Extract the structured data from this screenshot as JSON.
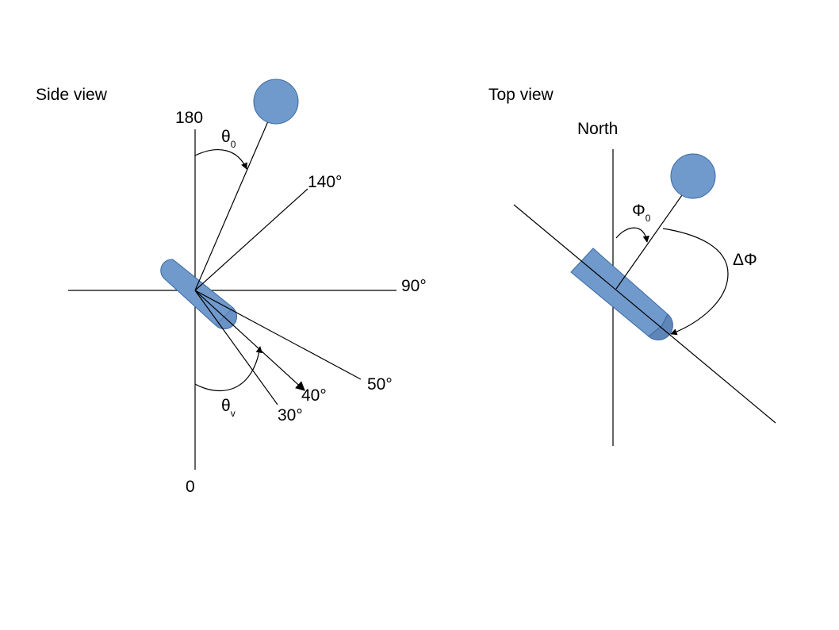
{
  "side_view": {
    "title": "Side view",
    "axis_top": "180",
    "axis_bottom": "0",
    "label_140": "140°",
    "label_90": "90°",
    "label_50": "50°",
    "label_40": "40°",
    "label_30": "30°",
    "theta0": {
      "symbol": "θ",
      "sub": "0"
    },
    "thetav": {
      "symbol": "θ",
      "sub": "v"
    }
  },
  "top_view": {
    "title": "Top view",
    "north": "North",
    "phi0": {
      "symbol": "Φ",
      "sub": "0"
    },
    "delta_phi": "ΔΦ"
  },
  "colors": {
    "fill": "#7099cc",
    "stroke": "#3b6aa3",
    "line": "#000000"
  }
}
